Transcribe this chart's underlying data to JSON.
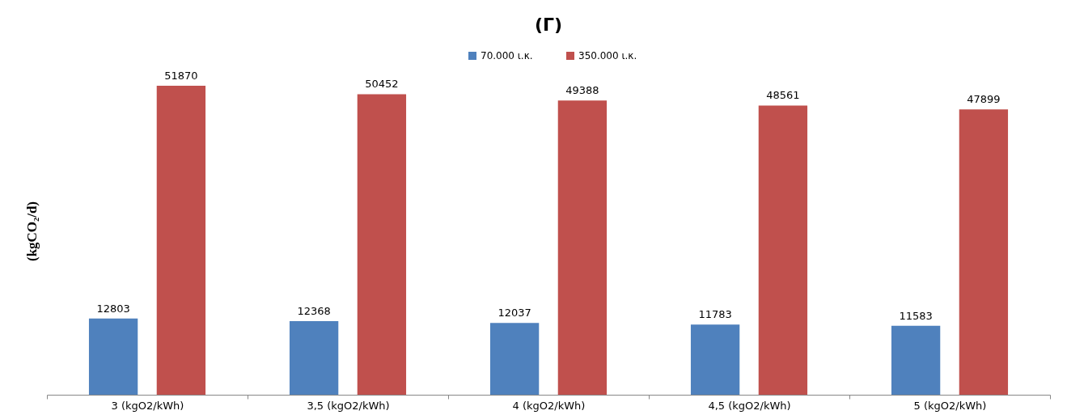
{
  "chart_data": {
    "type": "bar",
    "title": "(Γ)",
    "ylabel": "(kgCO₂/d)",
    "categories": [
      "3 (kgO2/kWh)",
      "3,5 (kgO2/kWh)",
      "4 (kgO2/kWh)",
      "4,5 (kgO2/kWh)",
      "5 (kgO2/kWh)"
    ],
    "series": [
      {
        "name": "70.000 ι.κ.",
        "color": "#4f81bd",
        "values": [
          12803,
          12368,
          12037,
          11783,
          11583
        ]
      },
      {
        "name": "350.000 ι.κ.",
        "color": "#c0504d",
        "values": [
          51870,
          50452,
          49388,
          48561,
          47899
        ]
      }
    ],
    "data_labels": true,
    "legend": "top",
    "grid": false
  }
}
